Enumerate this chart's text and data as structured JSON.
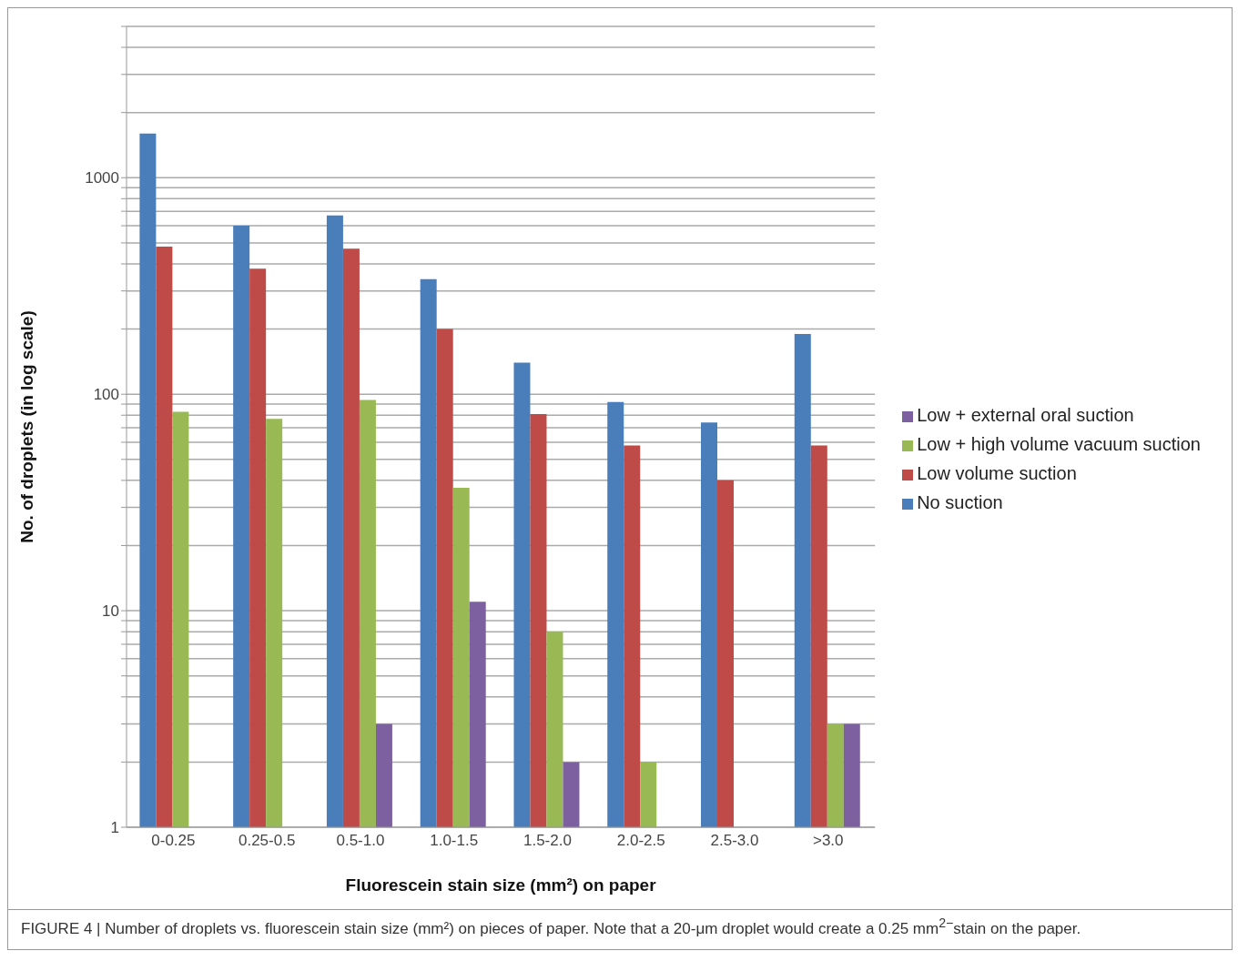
{
  "chart_data": {
    "type": "bar",
    "xlabel": "Fluorescein stain size  (mm²) on paper",
    "ylabel": "No. of droplets (in log scale)",
    "categories": [
      "0-0.25",
      "0.25-0.5",
      "0.5-1.0",
      "1.0-1.5",
      "1.5-2.0",
      "2.0-2.5",
      "2.5-3.0",
      ">3.0"
    ],
    "series": [
      {
        "name": "No suction",
        "color": "#4a7ebb",
        "values": [
          1600,
          600,
          670,
          340,
          140,
          92,
          74,
          190
        ]
      },
      {
        "name": "Low volume suction",
        "color": "#be4b48",
        "values": [
          480,
          380,
          470,
          200,
          81,
          58,
          40,
          58
        ]
      },
      {
        "name": "Low + high volume vacuum suction",
        "color": "#98b954",
        "values": [
          83,
          77,
          94,
          37,
          8,
          2,
          null,
          3
        ]
      },
      {
        "name": "Low +  external oral suction",
        "color": "#7d60a0",
        "values": [
          null,
          null,
          3,
          11,
          2,
          null,
          null,
          3
        ]
      }
    ],
    "log": "y",
    "ylim": [
      1,
      5000
    ],
    "yticks": [
      1,
      {
        "value": 2,
        "label": null
      },
      {
        "value": 3,
        "label": null
      },
      {
        "value": 4,
        "label": null
      },
      {
        "value": 5,
        "label": null
      },
      {
        "value": 6,
        "label": null
      },
      {
        "value": 7,
        "label": null
      },
      {
        "value": 8,
        "label": null
      },
      {
        "value": 9,
        "label": null
      },
      10,
      {
        "value": 20,
        "label": null
      },
      {
        "value": 30,
        "label": null
      },
      {
        "value": 40,
        "label": null
      },
      {
        "value": 50,
        "label": null
      },
      {
        "value": 60,
        "label": null
      },
      {
        "value": 70,
        "label": null
      },
      {
        "value": 80,
        "label": null
      },
      {
        "value": 90,
        "label": null
      },
      100,
      {
        "value": 200,
        "label": null
      },
      {
        "value": 300,
        "label": null
      },
      {
        "value": 400,
        "label": null
      },
      {
        "value": 500,
        "label": null
      },
      {
        "value": 600,
        "label": null
      },
      {
        "value": 700,
        "label": null
      },
      {
        "value": 800,
        "label": null
      },
      {
        "value": 900,
        "label": null
      },
      1000,
      {
        "value": 2000,
        "label": null
      },
      {
        "value": 3000,
        "label": null
      },
      {
        "value": 4000,
        "label": null
      },
      {
        "value": 5000,
        "label": null
      }
    ],
    "grid": "y",
    "legend": "right",
    "annotations": [
      "FIGURE 4 | Number of droplets vs. fluorescein stain size (mm²) on pieces of paper. Note that a 20-μm droplet would create a 0.25 mm$^{2−}$stain on the paper."
    ]
  }
}
